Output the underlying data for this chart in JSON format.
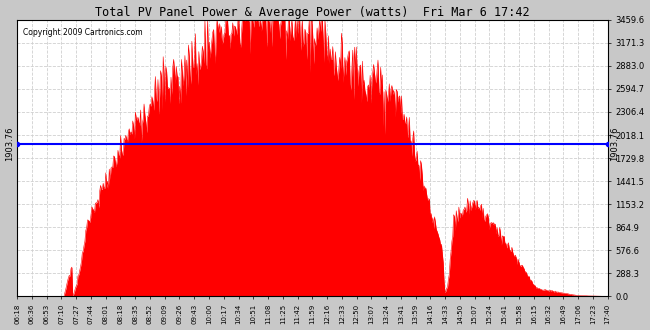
{
  "title": "Total PV Panel Power & Average Power (watts)  Fri Mar 6 17:42",
  "copyright": "Copyright 2009 Cartronics.com",
  "avg_power": 1903.76,
  "y_max": 3459.6,
  "y_ticks": [
    0.0,
    288.3,
    576.6,
    864.9,
    1153.2,
    1441.5,
    1729.8,
    2018.1,
    2306.4,
    2594.7,
    2883.0,
    3171.3,
    3459.6
  ],
  "x_labels": [
    "06:18",
    "06:36",
    "06:53",
    "07:10",
    "07:27",
    "07:44",
    "08:01",
    "08:18",
    "08:35",
    "08:52",
    "09:09",
    "09:26",
    "09:43",
    "10:00",
    "10:17",
    "10:34",
    "10:51",
    "11:08",
    "11:25",
    "11:42",
    "11:59",
    "12:16",
    "12:33",
    "12:50",
    "13:07",
    "13:24",
    "13:41",
    "13:59",
    "14:16",
    "14:33",
    "14:50",
    "15:07",
    "15:24",
    "15:41",
    "15:58",
    "16:15",
    "16:32",
    "16:49",
    "17:06",
    "17:23",
    "17:40"
  ],
  "bg_color": "#c8c8c8",
  "plot_bg": "#ffffff",
  "fill_color": "#ff0000",
  "line_color": "#0000ff",
  "grid_color": "#aaaaaa",
  "title_color": "#000000"
}
